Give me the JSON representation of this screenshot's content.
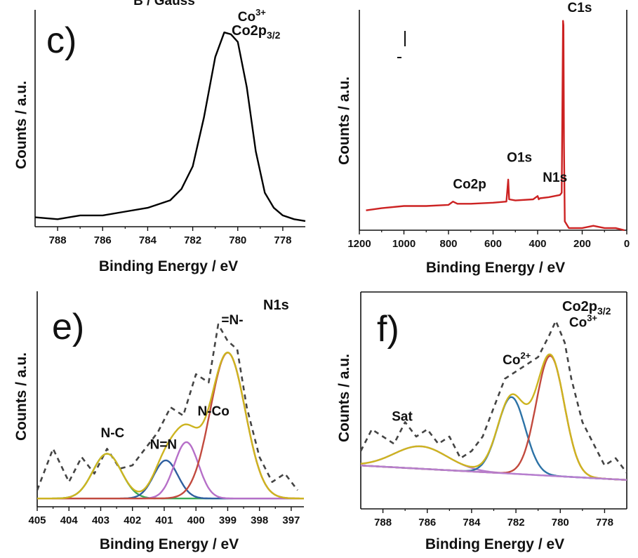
{
  "top_cutoff_label": "B / Gauss",
  "chart_data": [
    {
      "id": "c",
      "type": "line",
      "panel_label": "c)",
      "title": "Co2p",
      "title_sub": "3/2",
      "xlabel": "Binding Energy / eV",
      "ylabel": "Counts / a.u.",
      "xlim": [
        789,
        777
      ],
      "ylim": [
        0,
        1.15
      ],
      "xticks": [
        788,
        786,
        784,
        782,
        780,
        778
      ],
      "series": [
        {
          "name": "Co2p3/2",
          "color": "#000000",
          "x": [
            789,
            788,
            787,
            786,
            785,
            784,
            783,
            782.5,
            782,
            781.5,
            781,
            780.6,
            780.3,
            780,
            779.6,
            779.2,
            778.8,
            778.4,
            778,
            777.5,
            777
          ],
          "y": [
            0.05,
            0.04,
            0.06,
            0.06,
            0.08,
            0.1,
            0.14,
            0.2,
            0.32,
            0.58,
            0.9,
            1.03,
            1.02,
            0.98,
            0.74,
            0.4,
            0.18,
            0.1,
            0.06,
            0.04,
            0.03
          ]
        }
      ],
      "annotations": [
        {
          "text": "Co",
          "sup": "3+",
          "x": 780.0,
          "y": 1.09
        }
      ]
    },
    {
      "id": "d",
      "type": "line",
      "xlabel": "Binding Energy / eV",
      "ylabel": "Counts / a.u.",
      "xlim": [
        1200,
        0
      ],
      "ylim": [
        0,
        1.0
      ],
      "xticks": [
        1200,
        1000,
        800,
        600,
        400,
        200,
        0
      ],
      "series": [
        {
          "name": "survey",
          "color": "#cc2222",
          "x": [
            1170,
            1100,
            1000,
            900,
            800,
            780,
            760,
            700,
            600,
            540,
            532,
            528,
            500,
            420,
            400,
            395,
            390,
            350,
            300,
            292,
            286,
            284,
            282,
            278,
            260,
            200,
            150,
            100,
            50,
            10
          ],
          "y": [
            0.09,
            0.1,
            0.11,
            0.11,
            0.115,
            0.13,
            0.12,
            0.12,
            0.125,
            0.13,
            0.23,
            0.14,
            0.135,
            0.14,
            0.155,
            0.14,
            0.145,
            0.15,
            0.16,
            0.17,
            0.95,
            0.93,
            0.4,
            0.04,
            0.01,
            0.01,
            0.02,
            0.01,
            0.01,
            0.0
          ]
        }
      ],
      "annotations": [
        {
          "text": "C1s",
          "x": 266,
          "y": 0.99
        },
        {
          "text": "O1s",
          "x": 538,
          "y": 0.31
        },
        {
          "text": "N1s",
          "x": 377,
          "y": 0.22
        },
        {
          "text": "Co2p",
          "x": 780,
          "y": 0.19
        }
      ]
    },
    {
      "id": "e",
      "type": "line",
      "panel_label": "e)",
      "title": "N1s",
      "xlabel": "Binding Energy / eV",
      "ylabel": "Counts / a.u.",
      "xlim": [
        405,
        396.6
      ],
      "ylim": [
        -0.05,
        1.25
      ],
      "xticks": [
        405,
        404,
        403,
        402,
        401,
        400,
        399,
        398,
        397
      ],
      "series": [
        {
          "name": "raw data",
          "color": "#444444",
          "style": "dashed",
          "x": [
            405,
            404.5,
            404,
            403.6,
            403.2,
            402.8,
            402.4,
            402,
            401.6,
            401.2,
            400.8,
            400.4,
            400,
            399.6,
            399.3,
            399,
            398.7,
            398.4,
            398,
            397.6,
            397.2,
            396.8
          ],
          "y": [
            0.05,
            0.3,
            0.1,
            0.25,
            0.15,
            0.3,
            0.18,
            0.2,
            0.3,
            0.4,
            0.55,
            0.5,
            0.75,
            0.7,
            1.05,
            0.95,
            0.9,
            0.55,
            0.25,
            0.1,
            0.15,
            0.05
          ]
        },
        {
          "name": "N-C",
          "color": "#3aa855",
          "peak": {
            "center": 402.8,
            "height": 0.27,
            "sigma": 0.45
          }
        },
        {
          "name": "N=N",
          "color": "#2f5f9f",
          "peak": {
            "center": 400.95,
            "height": 0.23,
            "sigma": 0.38
          }
        },
        {
          "name": "N-Co",
          "color": "#b66fc8",
          "peak": {
            "center": 400.3,
            "height": 0.34,
            "sigma": 0.38
          }
        },
        {
          "name": "=N-",
          "color": "#c24a3e",
          "peak": {
            "center": 399.0,
            "height": 0.88,
            "sigma": 0.55
          }
        },
        {
          "name": "envelope",
          "color": "#cdb420",
          "envelope": true
        }
      ],
      "annotations": [
        {
          "text": "N-C",
          "x": 403.0,
          "y": 0.37
        },
        {
          "text": "N=N",
          "x": 401.45,
          "y": 0.3
        },
        {
          "text": "N-Co",
          "x": 399.95,
          "y": 0.5
        },
        {
          "text": "=N-",
          "x": 399.2,
          "y": 1.05
        }
      ]
    },
    {
      "id": "f",
      "type": "line",
      "panel_label": "f)",
      "title": "Co2p",
      "title_sub": "3/2",
      "xlabel": "Binding Energy / eV",
      "ylabel": "Counts / a.u.",
      "xlim": [
        789,
        777
      ],
      "ylim": [
        -0.2,
        1.3
      ],
      "xticks": [
        788,
        786,
        784,
        782,
        780,
        778
      ],
      "series": [
        {
          "name": "raw data",
          "color": "#444444",
          "style": "dashed",
          "x": [
            789,
            788.5,
            788,
            787.5,
            787,
            786.5,
            786,
            785.5,
            785,
            784.5,
            784,
            783.5,
            783,
            782.5,
            782,
            781.5,
            781,
            780.5,
            780.2,
            779.8,
            779.5,
            779,
            778.5,
            778,
            777.5,
            777
          ],
          "y": [
            0.2,
            0.35,
            0.3,
            0.25,
            0.4,
            0.3,
            0.35,
            0.25,
            0.3,
            0.15,
            0.2,
            0.3,
            0.5,
            0.7,
            0.75,
            0.8,
            0.85,
            1.0,
            1.1,
            0.95,
            0.7,
            0.4,
            0.25,
            0.1,
            0.15,
            0.05
          ]
        },
        {
          "name": "Sat",
          "color": "#b77fcf",
          "peak": {
            "center": 786.3,
            "height": 0.155,
            "sigma": 1.2
          }
        },
        {
          "name": "Co2+",
          "color": "#2c72a6",
          "peak": {
            "center": 782.2,
            "height": 0.53,
            "sigma": 0.62
          }
        },
        {
          "name": "Co3+",
          "color": "#c24a3e",
          "peak": {
            "center": 780.45,
            "height": 0.83,
            "sigma": 0.63
          }
        },
        {
          "name": "envelope",
          "color": "#cdb420",
          "envelope": true
        },
        {
          "name": "background",
          "color": "#b77fcf",
          "line": [
            [
              789,
              0.1
            ],
            [
              777,
              0.0
            ]
          ]
        }
      ],
      "annotations": [
        {
          "text": "Sat",
          "x": 787.6,
          "y": 0.41
        },
        {
          "text": "Co",
          "sup": "2+",
          "x": 782.6,
          "y": 0.8
        },
        {
          "text": "Co",
          "sup": "3+",
          "x": 779.6,
          "y": 1.06
        }
      ]
    }
  ]
}
